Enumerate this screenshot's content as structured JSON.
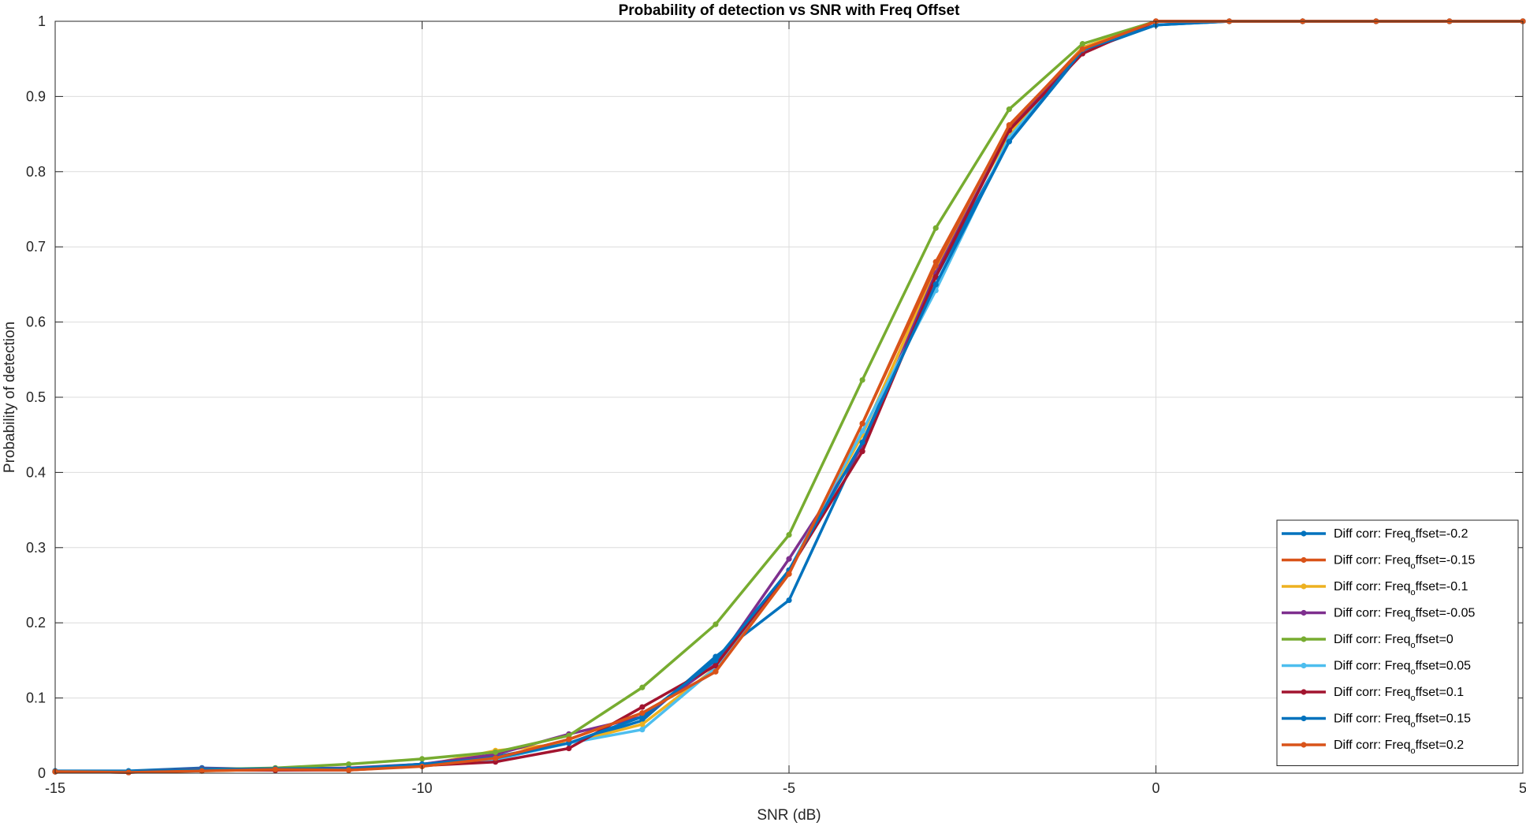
{
  "chart_data": {
    "type": "line",
    "title": "Probability of detection vs SNR with Freq Offset",
    "xlabel": "SNR (dB)",
    "ylabel": "Probability of detection",
    "xlim": [
      -15,
      5
    ],
    "ylim": [
      0,
      1
    ],
    "xticks": [
      -15,
      -10,
      -5,
      0,
      5
    ],
    "yticks": [
      0,
      0.1,
      0.2,
      0.3,
      0.4,
      0.5,
      0.6,
      0.7,
      0.8,
      0.9,
      1
    ],
    "xtick_labels": [
      "-15",
      "-10",
      "-5",
      "0",
      "5"
    ],
    "ytick_labels": [
      "0",
      "0.1",
      "0.2",
      "0.3",
      "0.4",
      "0.5",
      "0.6",
      "0.7",
      "0.8",
      "0.9",
      "1"
    ],
    "grid": true,
    "legend_position": "bottom-right",
    "x": [
      -15,
      -14,
      -13,
      -12,
      -11,
      -10,
      -9,
      -8,
      -7,
      -6,
      -5,
      -4,
      -3,
      -2,
      -1,
      0,
      1,
      2,
      3,
      4,
      5
    ],
    "series": [
      {
        "name": "Diff corr: Freq_offset=-0.2",
        "legend_prefix": "Diff corr: Freq",
        "legend_sub": "o",
        "legend_suffix": "ffset=-0.2",
        "color": "#0072BD",
        "values": [
          0.003,
          0.003,
          0.007,
          0.005,
          0.006,
          0.012,
          0.022,
          0.04,
          0.07,
          0.155,
          0.23,
          0.44,
          0.66,
          0.84,
          0.96,
          0.995,
          1.0,
          1.0,
          1.0,
          1.0,
          1.0
        ]
      },
      {
        "name": "Diff corr: Freq_offset=-0.15",
        "legend_prefix": "Diff corr: Freq",
        "legend_sub": "o",
        "legend_suffix": "ffset=-0.15",
        "color": "#D95319",
        "values": [
          0.002,
          0.001,
          0.004,
          0.004,
          0.005,
          0.01,
          0.02,
          0.045,
          0.08,
          0.135,
          0.265,
          0.465,
          0.68,
          0.86,
          0.965,
          1.0,
          1.0,
          1.0,
          1.0,
          1.0,
          1.0
        ]
      },
      {
        "name": "Diff corr: Freq_offset=-0.1",
        "legend_prefix": "Diff corr: Freq",
        "legend_sub": "o",
        "legend_suffix": "ffset=-0.1",
        "color": "#EDB120",
        "values": [
          0.002,
          0.002,
          0.003,
          0.005,
          0.006,
          0.01,
          0.03,
          0.04,
          0.065,
          0.14,
          0.27,
          0.45,
          0.67,
          0.85,
          0.965,
          1.0,
          1.0,
          1.0,
          1.0,
          1.0,
          1.0
        ]
      },
      {
        "name": "Diff corr: Freq_offset=-0.05",
        "legend_prefix": "Diff corr: Freq",
        "legend_sub": "o",
        "legend_suffix": "ffset=-0.05",
        "color": "#7E2F8E",
        "values": [
          0.002,
          0.002,
          0.006,
          0.006,
          0.007,
          0.012,
          0.025,
          0.052,
          0.075,
          0.145,
          0.285,
          0.435,
          0.665,
          0.855,
          0.962,
          1.0,
          1.0,
          1.0,
          1.0,
          1.0,
          1.0
        ]
      },
      {
        "name": "Diff corr: Freq_offset=0",
        "legend_prefix": "Diff corr: Freq",
        "legend_sub": "o",
        "legend_suffix": "ffset=0",
        "color": "#77AC30",
        "values": [
          0.002,
          0.002,
          0.005,
          0.007,
          0.012,
          0.019,
          0.028,
          0.05,
          0.114,
          0.198,
          0.317,
          0.523,
          0.725,
          0.883,
          0.97,
          1.0,
          1.0,
          1.0,
          1.0,
          1.0,
          1.0
        ]
      },
      {
        "name": "Diff corr: Freq_offset=0.05",
        "legend_prefix": "Diff corr: Freq",
        "legend_sub": "o",
        "legend_suffix": "ffset=0.05",
        "color": "#4DBEEE",
        "values": [
          0.002,
          0.002,
          0.004,
          0.005,
          0.006,
          0.01,
          0.018,
          0.04,
          0.058,
          0.14,
          0.27,
          0.455,
          0.642,
          0.845,
          0.96,
          1.0,
          1.0,
          1.0,
          1.0,
          1.0,
          1.0
        ]
      },
      {
        "name": "Diff corr: Freq_offset=0.1",
        "legend_prefix": "Diff corr: Freq",
        "legend_sub": "o",
        "legend_suffix": "ffset=0.1",
        "color": "#A2142F",
        "values": [
          0.002,
          0.001,
          0.004,
          0.004,
          0.004,
          0.01,
          0.015,
          0.033,
          0.088,
          0.143,
          0.27,
          0.428,
          0.66,
          0.855,
          0.957,
          1.0,
          1.0,
          1.0,
          1.0,
          1.0,
          1.0
        ]
      },
      {
        "name": "Diff corr: Freq_offset=0.15",
        "legend_prefix": "Diff corr: Freq",
        "legend_sub": "o",
        "legend_suffix": "ffset=0.15",
        "color": "#0072BD",
        "values": [
          0.002,
          0.002,
          0.005,
          0.006,
          0.006,
          0.012,
          0.02,
          0.04,
          0.075,
          0.15,
          0.27,
          0.44,
          0.65,
          0.84,
          0.962,
          0.995,
          1.0,
          1.0,
          1.0,
          1.0,
          1.0
        ]
      },
      {
        "name": "Diff corr: Freq_offset=0.2",
        "legend_prefix": "Diff corr: Freq",
        "legend_sub": "o",
        "legend_suffix": "ffset=0.2",
        "color": "#D95319",
        "values": [
          0.002,
          0.001,
          0.003,
          0.005,
          0.004,
          0.009,
          0.02,
          0.045,
          0.08,
          0.135,
          0.265,
          0.465,
          0.675,
          0.862,
          0.963,
          1.0,
          1.0,
          1.0,
          1.0,
          1.0,
          1.0
        ]
      }
    ]
  }
}
